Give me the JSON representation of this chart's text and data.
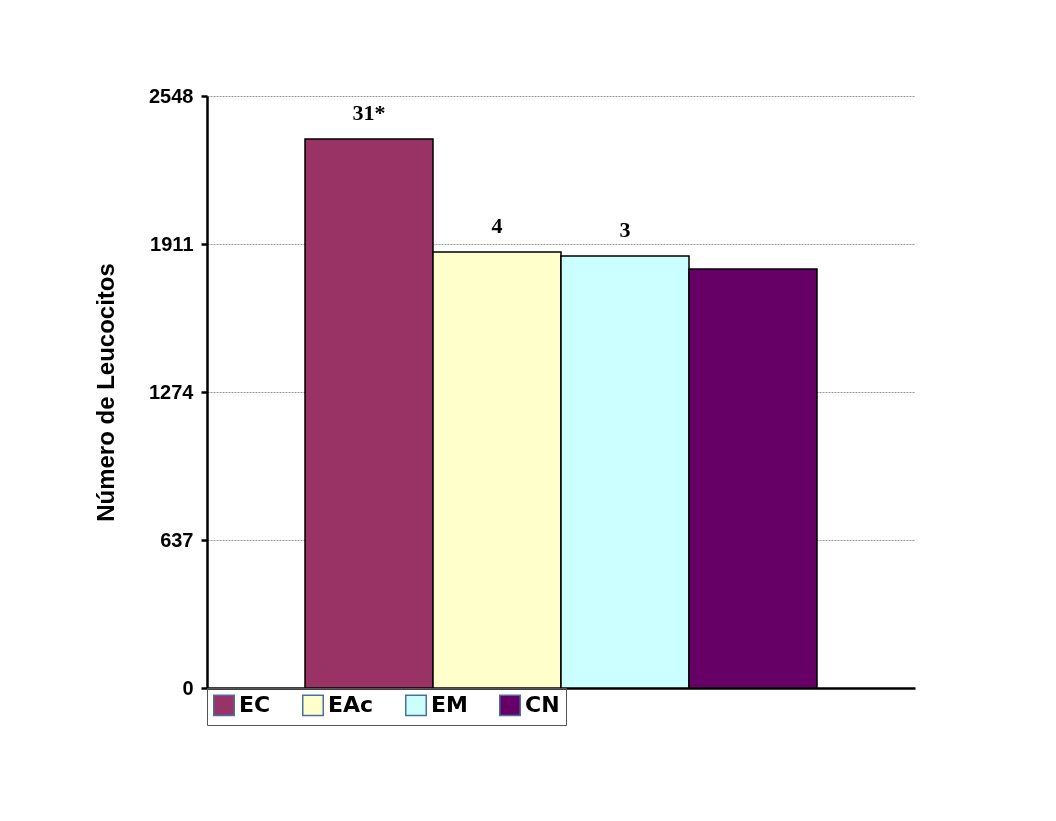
{
  "chart_data": {
    "type": "bar",
    "ylabel": "Número de Leucocitos",
    "categories": [
      null
    ],
    "series": [
      {
        "name": "EC",
        "color": "#993366",
        "values": [
          2363
        ]
      },
      {
        "name": "EAc",
        "color": "#ffffcc",
        "values": [
          1877
        ]
      },
      {
        "name": "EM",
        "color": "#ccffff",
        "values": [
          1859
        ]
      },
      {
        "name": "CN",
        "color": "#660066",
        "values": [
          1803
        ]
      }
    ],
    "annotations": [
      "31*",
      "4",
      "3"
    ],
    "ylim": [
      0,
      2548
    ],
    "yticks": [
      0,
      637,
      1274,
      1911,
      2548
    ],
    "grid": "y",
    "legend": "bottom",
    "tick_labels": "y"
  }
}
